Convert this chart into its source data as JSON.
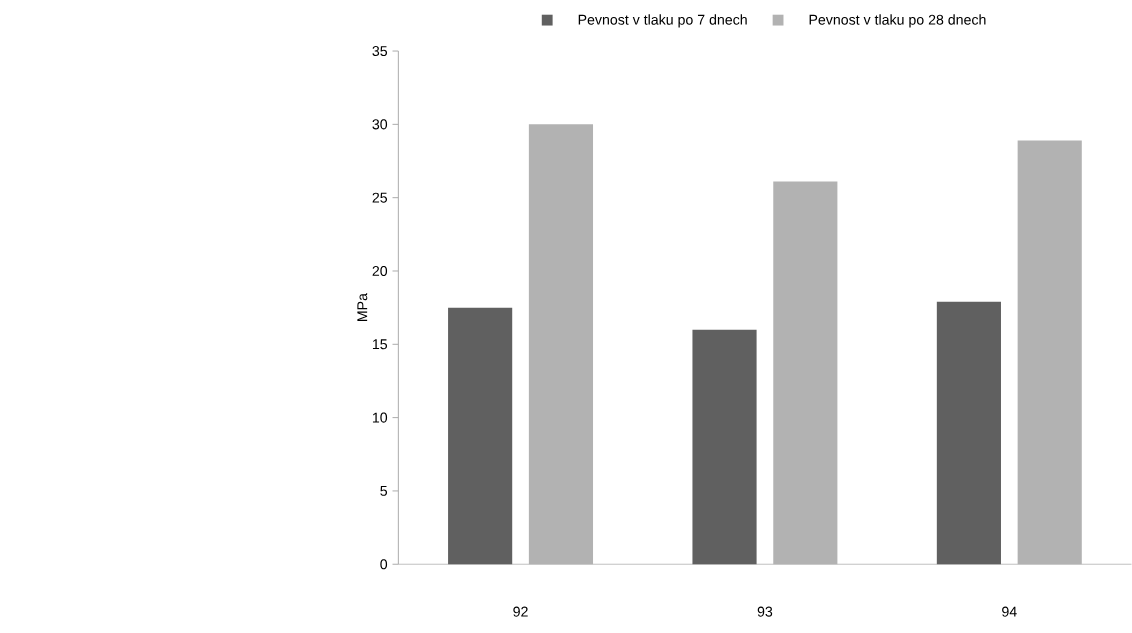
{
  "chart_data": {
    "type": "bar",
    "ylabel": "MPa",
    "categories": [
      "92",
      "93",
      "94"
    ],
    "series": [
      {
        "name": "Pevnost v tlaku po 7 dnech",
        "color": "#606060",
        "values": [
          17.5,
          16.0,
          17.9
        ]
      },
      {
        "name": "Pevnost v tlaku po 28 dnech",
        "color": "#b2b2b2",
        "values": [
          30.0,
          26.1,
          28.9
        ]
      }
    ],
    "ylim": [
      0,
      35
    ],
    "yticks": [
      0,
      5,
      10,
      15,
      20,
      25,
      30,
      35
    ],
    "grid": false,
    "legend": "top"
  }
}
